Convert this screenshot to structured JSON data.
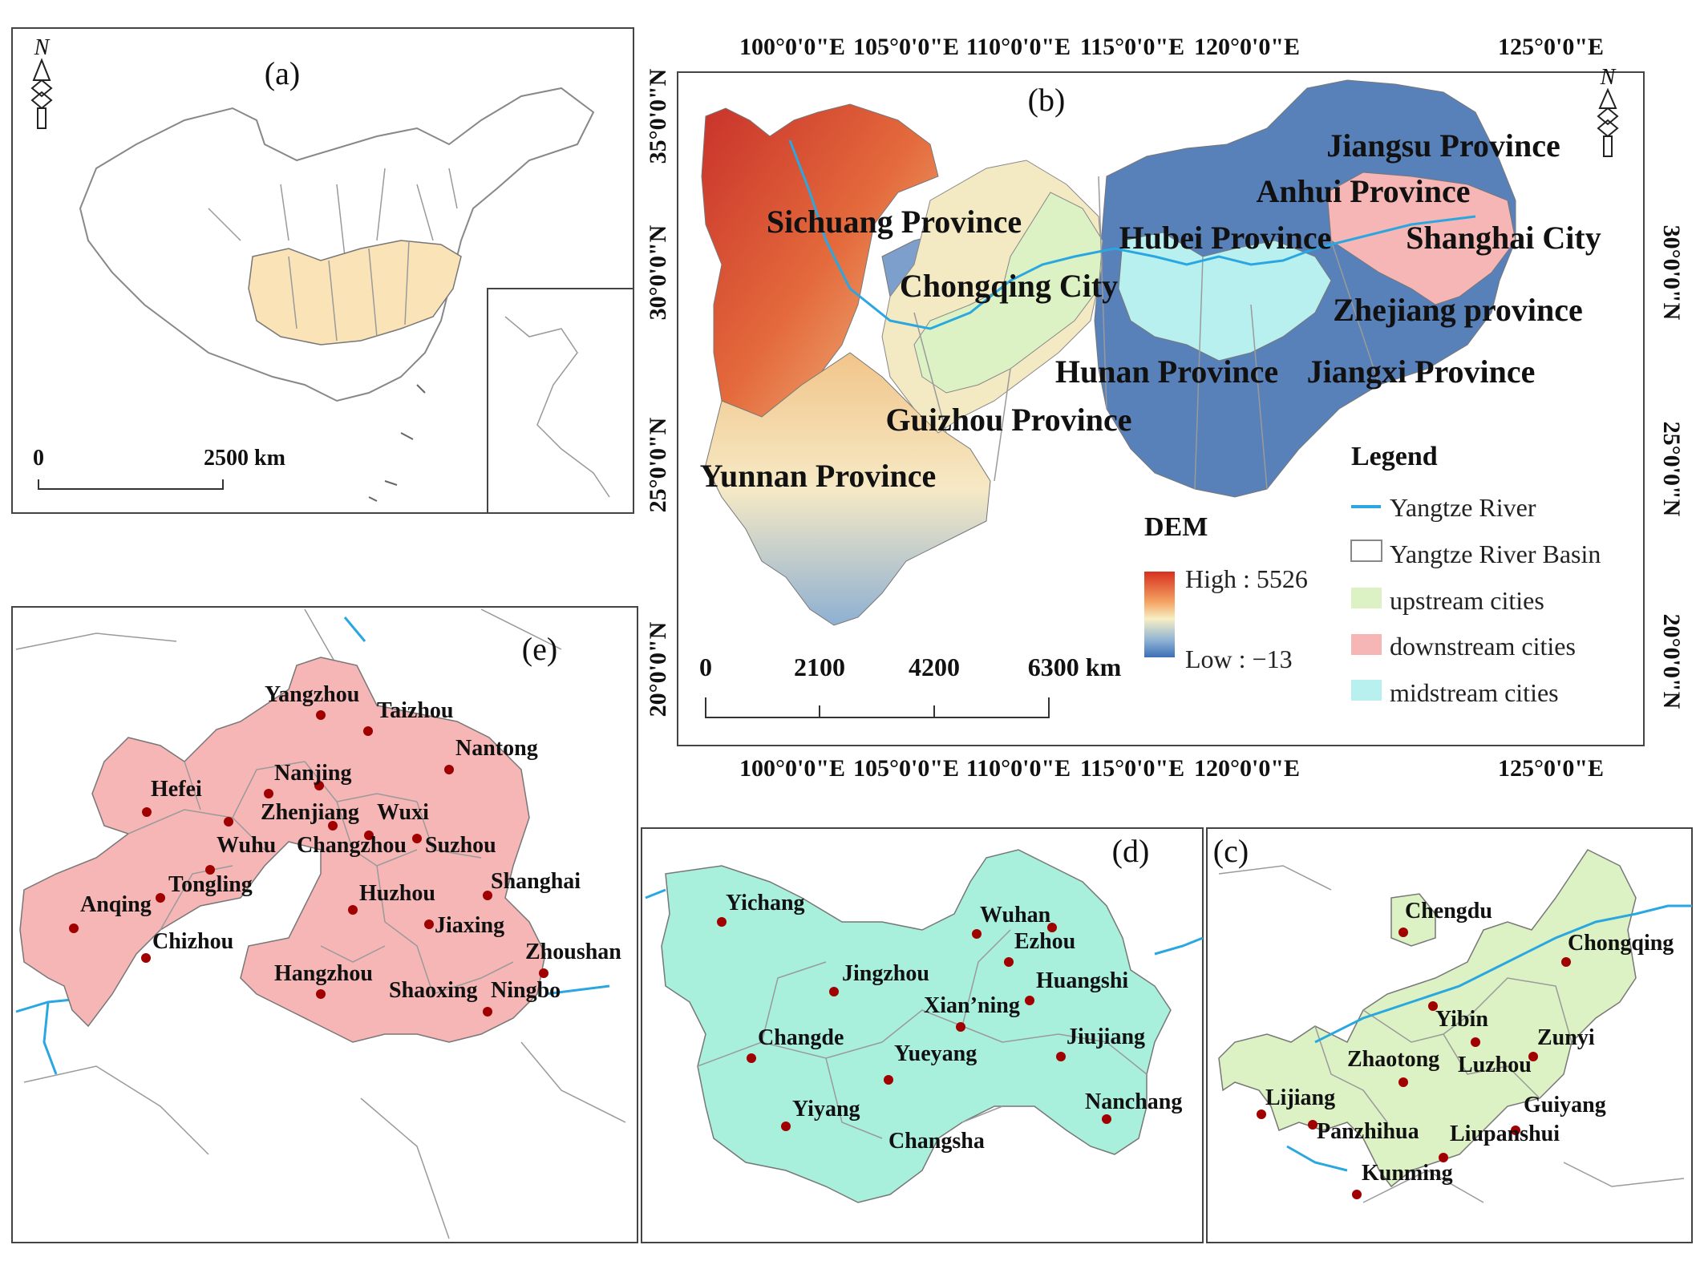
{
  "panels": {
    "a": {
      "label": "(a)",
      "north": "N",
      "scale_zero": "0",
      "scale_value": "2500 km"
    },
    "b": {
      "label": "(b)",
      "north": "N",
      "top_ticks": [
        "100°0'0\"E",
        "105°0'0\"E",
        "110°0'0\"E",
        "115°0'0\"E",
        "120°0'0\"E",
        "125°0'0\"E"
      ],
      "bottom_ticks": [
        "100°0'0\"E",
        "105°0'0\"E",
        "110°0'0\"E",
        "115°0'0\"E",
        "120°0'0\"E",
        "125°0'0\"E"
      ],
      "left_ticks": [
        "35°0'0\"N",
        "30°0'0\"N",
        "25°0'0\"N",
        "20°0'0\"N"
      ],
      "right_ticks": [
        "30°0'0\"N",
        "25°0'0\"N",
        "20°0'0\"N"
      ],
      "provinces": [
        "Sichuang Province",
        "Chongqing City",
        "Hubei Province",
        "Jiangsu Province",
        "Anhui Province",
        "Shanghai City",
        "Zhejiang province",
        "Hunan Province",
        "Jiangxi Province",
        "Guizhou Province",
        "Yunnan Province"
      ],
      "dem": {
        "title": "DEM",
        "high": "High : 5526",
        "low": "Low : −13"
      },
      "scale": [
        "0",
        "2100",
        "4200",
        "6300 km"
      ],
      "legend": {
        "title": "Legend",
        "items": [
          {
            "label": "Yangtze River",
            "color": "#2aa7e0"
          },
          {
            "label": "Yangtze River Basin",
            "color": "#ffffff"
          },
          {
            "label": "upstream cities",
            "color": "#dcf2c4"
          },
          {
            "label": "downstream cities",
            "color": "#f6b6b6"
          },
          {
            "label": "midstream cities",
            "color": "#b8f0f0"
          }
        ]
      }
    },
    "c": {
      "label": "(c)",
      "cities": [
        "Chengdu",
        "Chongqing",
        "Yibin",
        "Zunyi",
        "Zhaotong",
        "Luzhou",
        "Lijiang",
        "Guiyang",
        "Panzhihua",
        "Liupanshui",
        "Kunming"
      ]
    },
    "d": {
      "label": "(d)",
      "cities": [
        "Yichang",
        "Wuhan",
        "Ezhou",
        "Jingzhou",
        "Huangshi",
        "Xian’ning",
        "Changde",
        "Jiujiang",
        "Yueyang",
        "Nanchang",
        "Yiyang",
        "Changsha"
      ]
    },
    "e": {
      "label": "(e)",
      "cities": [
        "Yangzhou",
        "Taizhou",
        "Nantong",
        "Hefei",
        "Nanjing",
        "Zhenjiang",
        "Wuxi",
        "Wuhu",
        "Changzhou",
        "Suzhou",
        "Tongling",
        "Shanghai",
        "Huzhou",
        "Anqing",
        "Jiaxing",
        "Chizhou",
        "Zhoushan",
        "Hangzhou",
        "Shaoxing",
        "Ningbo"
      ]
    }
  },
  "colors": {
    "upstream": "#dcf2c4",
    "midstream": "#b8f0f0",
    "downstream": "#f6b6b6",
    "river": "#2aa7e0",
    "dem_high": "#d7301f",
    "dem_low": "#3b6fb6",
    "city_dot": "#a00000"
  }
}
